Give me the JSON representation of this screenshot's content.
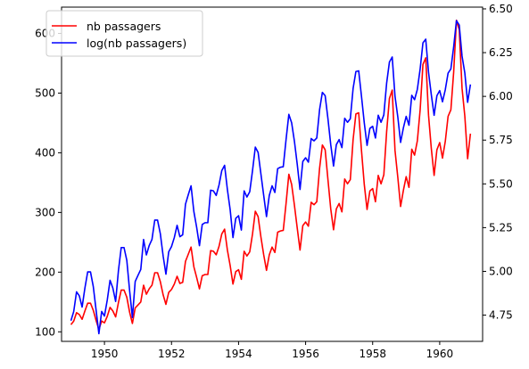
{
  "chart_data": {
    "type": "line",
    "title": "",
    "xlabel": "",
    "ylabel": "",
    "x_start": 1949.0,
    "x_step": 0.083333,
    "xlim": [
      1948.72,
      1961.28
    ],
    "ylim_left": [
      84,
      644
    ],
    "ylim_right": [
      4.6,
      6.51
    ],
    "x_ticks": [
      1950,
      1952,
      1954,
      1956,
      1958,
      1960
    ],
    "x_tick_labels": [
      "1950",
      "1952",
      "1954",
      "1956",
      "1958",
      "1960"
    ],
    "y_left_ticks": [
      100,
      200,
      300,
      400,
      500,
      600
    ],
    "y_left_tick_labels": [
      "100",
      "200",
      "300",
      "400",
      "500",
      "600"
    ],
    "y_right_ticks": [
      4.75,
      5.0,
      5.25,
      5.5,
      5.75,
      6.0,
      6.25,
      6.5
    ],
    "y_right_tick_labels": [
      "4.75",
      "5.00",
      "5.25",
      "5.50",
      "5.75",
      "6.00",
      "6.25",
      "6.50"
    ],
    "grid": false,
    "legend_position": "top-left",
    "series": [
      {
        "name": "nb passagers",
        "color": "#ff0000",
        "axis": "left",
        "values": [
          112,
          118,
          132,
          129,
          121,
          135,
          148,
          148,
          136,
          119,
          104,
          118,
          115,
          126,
          141,
          135,
          125,
          149,
          170,
          170,
          158,
          133,
          114,
          140,
          145,
          150,
          178,
          163,
          172,
          178,
          199,
          199,
          184,
          162,
          146,
          166,
          171,
          180,
          193,
          181,
          183,
          218,
          230,
          242,
          209,
          191,
          172,
          194,
          196,
          196,
          236,
          235,
          229,
          243,
          264,
          272,
          237,
          211,
          180,
          201,
          204,
          188,
          235,
          227,
          234,
          264,
          302,
          293,
          259,
          229,
          203,
          229,
          242,
          233,
          267,
          269,
          270,
          315,
          364,
          347,
          312,
          274,
          237,
          278,
          284,
          277,
          317,
          313,
          318,
          374,
          413,
          405,
          355,
          306,
          271,
          306,
          315,
          301,
          356,
          348,
          355,
          422,
          465,
          467,
          404,
          347,
          305,
          336,
          340,
          318,
          362,
          348,
          363,
          435,
          491,
          505,
          404,
          359,
          310,
          337,
          360,
          342,
          406,
          396,
          420,
          472,
          548,
          559,
          463,
          407,
          362,
          405,
          417,
          391,
          419,
          461,
          472,
          535,
          622,
          606,
          508,
          461,
          390,
          432
        ]
      },
      {
        "name": "log(nb passagers)",
        "color": "#0000ff",
        "axis": "right",
        "values": [
          4.718,
          4.771,
          4.883,
          4.86,
          4.796,
          4.905,
          4.997,
          4.997,
          4.913,
          4.779,
          4.644,
          4.771,
          4.745,
          4.836,
          4.949,
          4.905,
          4.828,
          5.004,
          5.136,
          5.136,
          5.063,
          4.89,
          4.736,
          4.942,
          4.977,
          5.011,
          5.182,
          5.094,
          5.147,
          5.182,
          5.293,
          5.293,
          5.215,
          5.088,
          4.984,
          5.112,
          5.142,
          5.193,
          5.263,
          5.198,
          5.209,
          5.384,
          5.438,
          5.489,
          5.342,
          5.252,
          5.147,
          5.268,
          5.278,
          5.278,
          5.464,
          5.46,
          5.434,
          5.493,
          5.576,
          5.606,
          5.468,
          5.352,
          5.193,
          5.303,
          5.318,
          5.236,
          5.46,
          5.425,
          5.455,
          5.576,
          5.71,
          5.68,
          5.557,
          5.434,
          5.313,
          5.434,
          5.489,
          5.451,
          5.587,
          5.595,
          5.598,
          5.753,
          5.897,
          5.849,
          5.743,
          5.613,
          5.468,
          5.628,
          5.649,
          5.624,
          5.759,
          5.746,
          5.762,
          5.924,
          6.023,
          6.004,
          5.872,
          5.724,
          5.602,
          5.724,
          5.753,
          5.707,
          5.875,
          5.852,
          5.872,
          6.045,
          6.142,
          6.146,
          6.001,
          5.849,
          5.72,
          5.817,
          5.829,
          5.762,
          5.892,
          5.852,
          5.894,
          6.075,
          6.196,
          6.225,
          6.001,
          5.883,
          5.737,
          5.82,
          5.886,
          5.835,
          6.006,
          5.981,
          6.04,
          6.157,
          6.306,
          6.327,
          6.138,
          6.009,
          5.892,
          6.004,
          6.033,
          5.969,
          6.038,
          6.133,
          6.157,
          6.283,
          6.433,
          6.407,
          6.23,
          6.133,
          5.966,
          6.068
        ]
      }
    ]
  }
}
